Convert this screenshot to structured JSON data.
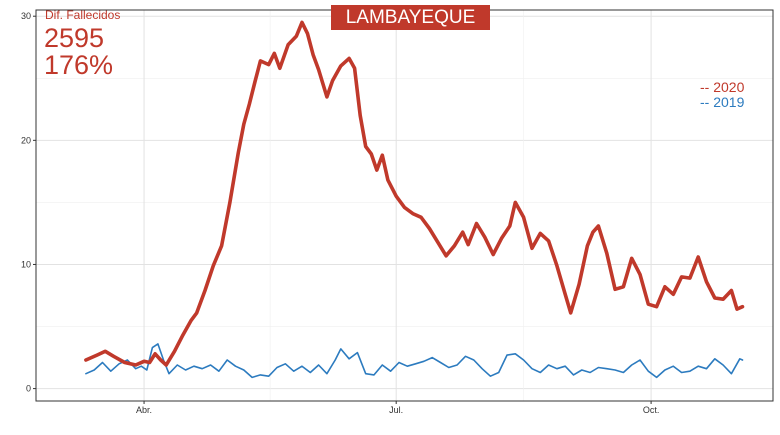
{
  "chart_data": {
    "type": "line",
    "title": "LAMBAYEQUE",
    "xlabel": "",
    "ylabel": "",
    "ylim": [
      -1,
      30.5
    ],
    "xlim": [
      "2020-02-22",
      "2020-11-14"
    ],
    "y_ticks": [
      0,
      10,
      20,
      30
    ],
    "x_ticks": [
      {
        "date": "2020-04-01",
        "label": "Abr."
      },
      {
        "date": "2020-07-01",
        "label": "Jul."
      },
      {
        "date": "2020-10-01",
        "label": "Oct."
      }
    ],
    "grid": true,
    "legend_position": "right",
    "annotation": {
      "label": "Dif. Fallecidos",
      "value": "2595",
      "percent": "176%"
    },
    "series": [
      {
        "name": "-- 2020",
        "color": "#c0392b",
        "points": [
          [
            "2020-03-11",
            2.3
          ],
          [
            "2020-03-15",
            2.7
          ],
          [
            "2020-03-18",
            3.0
          ],
          [
            "2020-03-21",
            2.6
          ],
          [
            "2020-03-25",
            2.1
          ],
          [
            "2020-03-29",
            1.9
          ],
          [
            "2020-04-01",
            2.2
          ],
          [
            "2020-04-03",
            2.1
          ],
          [
            "2020-04-05",
            2.8
          ],
          [
            "2020-04-07",
            2.3
          ],
          [
            "2020-04-09",
            1.9
          ],
          [
            "2020-04-12",
            3.0
          ],
          [
            "2020-04-15",
            4.3
          ],
          [
            "2020-04-18",
            5.5
          ],
          [
            "2020-04-20",
            6.1
          ],
          [
            "2020-04-23",
            7.9
          ],
          [
            "2020-04-26",
            9.9
          ],
          [
            "2020-04-29",
            11.5
          ],
          [
            "2020-05-02",
            15.0
          ],
          [
            "2020-05-05",
            19.0
          ],
          [
            "2020-05-07",
            21.3
          ],
          [
            "2020-05-09",
            22.9
          ],
          [
            "2020-05-11",
            24.7
          ],
          [
            "2020-05-13",
            26.4
          ],
          [
            "2020-05-16",
            26.1
          ],
          [
            "2020-05-18",
            27.0
          ],
          [
            "2020-05-20",
            25.8
          ],
          [
            "2020-05-23",
            27.7
          ],
          [
            "2020-05-26",
            28.4
          ],
          [
            "2020-05-28",
            29.5
          ],
          [
            "2020-05-30",
            28.6
          ],
          [
            "2020-06-01",
            26.9
          ],
          [
            "2020-06-03",
            25.7
          ],
          [
            "2020-06-06",
            23.5
          ],
          [
            "2020-06-08",
            24.8
          ],
          [
            "2020-06-11",
            26.0
          ],
          [
            "2020-06-14",
            26.6
          ],
          [
            "2020-06-16",
            25.8
          ],
          [
            "2020-06-18",
            22.0
          ],
          [
            "2020-06-20",
            19.5
          ],
          [
            "2020-06-22",
            18.9
          ],
          [
            "2020-06-24",
            17.6
          ],
          [
            "2020-06-26",
            18.8
          ],
          [
            "2020-06-28",
            16.8
          ],
          [
            "2020-07-01",
            15.5
          ],
          [
            "2020-07-04",
            14.6
          ],
          [
            "2020-07-07",
            14.1
          ],
          [
            "2020-07-10",
            13.8
          ],
          [
            "2020-07-13",
            12.9
          ],
          [
            "2020-07-16",
            11.8
          ],
          [
            "2020-07-19",
            10.7
          ],
          [
            "2020-07-22",
            11.5
          ],
          [
            "2020-07-25",
            12.6
          ],
          [
            "2020-07-27",
            11.6
          ],
          [
            "2020-07-30",
            13.3
          ],
          [
            "2020-08-02",
            12.2
          ],
          [
            "2020-08-05",
            10.8
          ],
          [
            "2020-08-08",
            12.1
          ],
          [
            "2020-08-11",
            13.1
          ],
          [
            "2020-08-13",
            15.0
          ],
          [
            "2020-08-16",
            13.8
          ],
          [
            "2020-08-19",
            11.3
          ],
          [
            "2020-08-22",
            12.5
          ],
          [
            "2020-08-25",
            11.9
          ],
          [
            "2020-08-28",
            9.9
          ],
          [
            "2020-08-31",
            7.6
          ],
          [
            "2020-09-02",
            6.1
          ],
          [
            "2020-09-05",
            8.4
          ],
          [
            "2020-09-08",
            11.5
          ],
          [
            "2020-09-10",
            12.6
          ],
          [
            "2020-09-12",
            13.1
          ],
          [
            "2020-09-15",
            10.9
          ],
          [
            "2020-09-18",
            8.0
          ],
          [
            "2020-09-21",
            8.2
          ],
          [
            "2020-09-24",
            10.5
          ],
          [
            "2020-09-27",
            9.2
          ],
          [
            "2020-09-30",
            6.8
          ],
          [
            "2020-10-03",
            6.6
          ],
          [
            "2020-10-06",
            8.2
          ],
          [
            "2020-10-09",
            7.6
          ],
          [
            "2020-10-12",
            9.0
          ],
          [
            "2020-10-15",
            8.9
          ],
          [
            "2020-10-18",
            10.6
          ],
          [
            "2020-10-21",
            8.6
          ],
          [
            "2020-10-24",
            7.3
          ],
          [
            "2020-10-27",
            7.2
          ],
          [
            "2020-10-30",
            7.9
          ],
          [
            "2020-11-01",
            6.4
          ],
          [
            "2020-11-03",
            6.6
          ]
        ]
      },
      {
        "name": "-- 2019",
        "color": "#2c7bbf",
        "points": [
          [
            "2020-03-11",
            1.2
          ],
          [
            "2020-03-14",
            1.5
          ],
          [
            "2020-03-17",
            2.1
          ],
          [
            "2020-03-20",
            1.4
          ],
          [
            "2020-03-23",
            2.0
          ],
          [
            "2020-03-26",
            2.3
          ],
          [
            "2020-03-29",
            1.6
          ],
          [
            "2020-03-31",
            1.8
          ],
          [
            "2020-04-02",
            1.5
          ],
          [
            "2020-04-04",
            3.3
          ],
          [
            "2020-04-06",
            3.6
          ],
          [
            "2020-04-08",
            2.3
          ],
          [
            "2020-04-10",
            1.2
          ],
          [
            "2020-04-13",
            1.9
          ],
          [
            "2020-04-16",
            1.5
          ],
          [
            "2020-04-19",
            1.8
          ],
          [
            "2020-04-22",
            1.6
          ],
          [
            "2020-04-25",
            1.9
          ],
          [
            "2020-04-28",
            1.4
          ],
          [
            "2020-05-01",
            2.3
          ],
          [
            "2020-05-04",
            1.8
          ],
          [
            "2020-05-07",
            1.5
          ],
          [
            "2020-05-10",
            0.9
          ],
          [
            "2020-05-13",
            1.1
          ],
          [
            "2020-05-16",
            1.0
          ],
          [
            "2020-05-19",
            1.7
          ],
          [
            "2020-05-22",
            2.0
          ],
          [
            "2020-05-25",
            1.4
          ],
          [
            "2020-05-28",
            1.8
          ],
          [
            "2020-05-31",
            1.3
          ],
          [
            "2020-06-03",
            1.9
          ],
          [
            "2020-06-06",
            1.2
          ],
          [
            "2020-06-09",
            2.3
          ],
          [
            "2020-06-11",
            3.2
          ],
          [
            "2020-06-14",
            2.4
          ],
          [
            "2020-06-17",
            2.9
          ],
          [
            "2020-06-20",
            1.2
          ],
          [
            "2020-06-23",
            1.1
          ],
          [
            "2020-06-26",
            1.9
          ],
          [
            "2020-06-29",
            1.4
          ],
          [
            "2020-07-02",
            2.1
          ],
          [
            "2020-07-05",
            1.8
          ],
          [
            "2020-07-08",
            2.0
          ],
          [
            "2020-07-11",
            2.2
          ],
          [
            "2020-07-14",
            2.5
          ],
          [
            "2020-07-17",
            2.1
          ],
          [
            "2020-07-20",
            1.7
          ],
          [
            "2020-07-23",
            1.9
          ],
          [
            "2020-07-26",
            2.6
          ],
          [
            "2020-07-29",
            2.3
          ],
          [
            "2020-08-01",
            1.6
          ],
          [
            "2020-08-04",
            1.0
          ],
          [
            "2020-08-07",
            1.3
          ],
          [
            "2020-08-10",
            2.7
          ],
          [
            "2020-08-13",
            2.8
          ],
          [
            "2020-08-16",
            2.3
          ],
          [
            "2020-08-19",
            1.6
          ],
          [
            "2020-08-22",
            1.3
          ],
          [
            "2020-08-25",
            1.9
          ],
          [
            "2020-08-28",
            1.6
          ],
          [
            "2020-08-31",
            1.8
          ],
          [
            "2020-09-03",
            1.1
          ],
          [
            "2020-09-06",
            1.5
          ],
          [
            "2020-09-09",
            1.3
          ],
          [
            "2020-09-12",
            1.7
          ],
          [
            "2020-09-15",
            1.6
          ],
          [
            "2020-09-18",
            1.5
          ],
          [
            "2020-09-21",
            1.3
          ],
          [
            "2020-09-24",
            1.9
          ],
          [
            "2020-09-27",
            2.3
          ],
          [
            "2020-09-30",
            1.4
          ],
          [
            "2020-10-03",
            0.9
          ],
          [
            "2020-10-06",
            1.5
          ],
          [
            "2020-10-09",
            1.8
          ],
          [
            "2020-10-12",
            1.3
          ],
          [
            "2020-10-15",
            1.4
          ],
          [
            "2020-10-18",
            1.8
          ],
          [
            "2020-10-21",
            1.6
          ],
          [
            "2020-10-24",
            2.4
          ],
          [
            "2020-10-27",
            1.9
          ],
          [
            "2020-10-30",
            1.2
          ],
          [
            "2020-11-02",
            2.4
          ],
          [
            "2020-11-03",
            2.3
          ]
        ]
      }
    ]
  }
}
